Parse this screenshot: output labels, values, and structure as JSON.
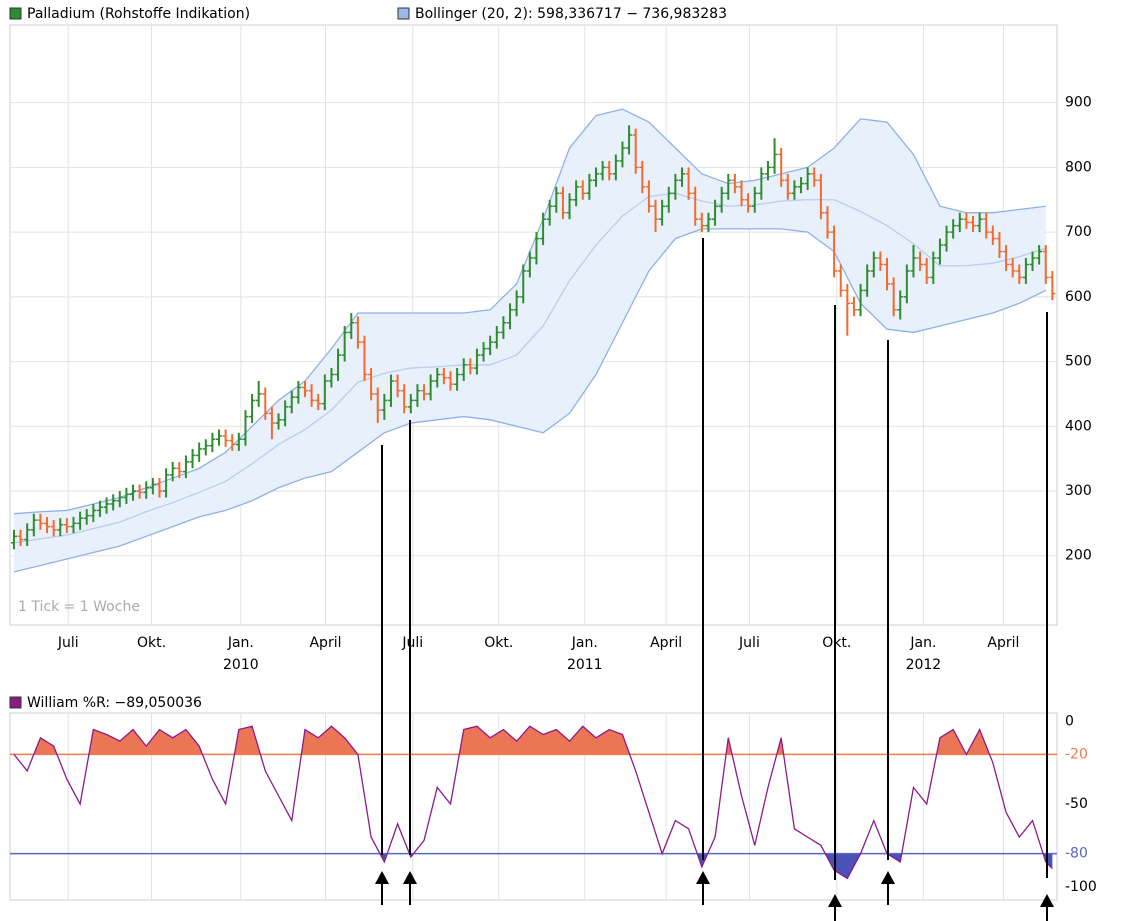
{
  "chart_data": [
    {
      "type": "ohlc",
      "legend": [
        {
          "name": "Palladium (Rohstoffe Indikation)",
          "color": "#2e8b2e"
        },
        {
          "name": "Bollinger (20, 2): 598,336717 − 736,983283",
          "color": "#9ab8e8"
        }
      ],
      "annotation": "1 Tick = 1 Woche",
      "up_color": "#2e8b2e",
      "down_color": "#f26a2e",
      "x": [
        0,
        1,
        2,
        3,
        4,
        5,
        6,
        7,
        8,
        9,
        10,
        11,
        12,
        13,
        14,
        15,
        16,
        17,
        18,
        19,
        20,
        21,
        22,
        23,
        24,
        25,
        26,
        27,
        28,
        29,
        30,
        31,
        32,
        33,
        34,
        35,
        36,
        37,
        38,
        39,
        40,
        41,
        42,
        43,
        44,
        45,
        46,
        47,
        48,
        49,
        50,
        51,
        52,
        53,
        54,
        55,
        56,
        57,
        58,
        59,
        60,
        61,
        62,
        63,
        64,
        65,
        66,
        67,
        68,
        69,
        70,
        71,
        72,
        73,
        74,
        75,
        76,
        77,
        78,
        79,
        80,
        81,
        82,
        83,
        84,
        85,
        86,
        87,
        88,
        89,
        90,
        91,
        92,
        93,
        94,
        95,
        96,
        97,
        98,
        99,
        100,
        101,
        102,
        103,
        104,
        105,
        106,
        107,
        108,
        109,
        110,
        111,
        112,
        113,
        114,
        115,
        116,
        117,
        118,
        119,
        120,
        121,
        122,
        123,
        124,
        125,
        126,
        127,
        128,
        129,
        130,
        131,
        132,
        133,
        134,
        135,
        136,
        137,
        138,
        139,
        140,
        141,
        142,
        143,
        144,
        145,
        146,
        147,
        148,
        149,
        150,
        151,
        152,
        153,
        154,
        155,
        156,
        157
      ],
      "open": [
        220,
        230,
        225,
        240,
        255,
        250,
        245,
        240,
        248,
        245,
        250,
        258,
        262,
        270,
        275,
        280,
        285,
        290,
        295,
        300,
        298,
        305,
        310,
        300,
        325,
        335,
        330,
        345,
        355,
        365,
        370,
        380,
        385,
        378,
        372,
        380,
        415,
        440,
        450,
        420,
        405,
        410,
        430,
        445,
        460,
        455,
        440,
        435,
        470,
        480,
        510,
        545,
        560,
        530,
        480,
        450,
        425,
        440,
        470,
        455,
        430,
        440,
        455,
        450,
        470,
        480,
        475,
        465,
        480,
        495,
        490,
        510,
        520,
        530,
        545,
        560,
        580,
        600,
        640,
        660,
        690,
        720,
        740,
        760,
        730,
        750,
        770,
        760,
        780,
        790,
        800,
        790,
        810,
        830,
        850,
        800,
        770,
        740,
        720,
        740,
        760,
        780,
        790,
        760,
        720,
        710,
        720,
        740,
        760,
        780,
        770,
        750,
        740,
        760,
        790,
        800,
        820,
        780,
        760,
        770,
        775,
        790,
        780,
        730,
        700,
        640,
        610,
        590,
        580,
        610,
        640,
        660,
        650,
        620,
        580,
        600,
        640,
        660,
        650,
        630,
        660,
        680,
        700,
        710,
        720,
        715,
        710,
        720,
        700,
        690,
        670,
        650,
        640,
        630,
        650,
        660,
        670,
        630
      ],
      "high": [
        240,
        240,
        250,
        265,
        265,
        260,
        255,
        258,
        258,
        260,
        268,
        272,
        280,
        285,
        290,
        295,
        300,
        305,
        310,
        310,
        315,
        320,
        320,
        335,
        345,
        345,
        355,
        365,
        375,
        380,
        390,
        395,
        395,
        388,
        390,
        425,
        450,
        470,
        460,
        430,
        420,
        440,
        455,
        470,
        470,
        465,
        450,
        480,
        490,
        520,
        555,
        575,
        570,
        540,
        490,
        460,
        450,
        480,
        480,
        465,
        450,
        465,
        465,
        480,
        490,
        490,
        485,
        490,
        505,
        505,
        520,
        530,
        540,
        555,
        570,
        590,
        610,
        650,
        670,
        700,
        730,
        750,
        770,
        770,
        760,
        780,
        780,
        790,
        800,
        810,
        810,
        820,
        840,
        865,
        860,
        810,
        780,
        750,
        750,
        770,
        790,
        800,
        800,
        770,
        730,
        730,
        750,
        770,
        790,
        790,
        780,
        760,
        770,
        800,
        810,
        845,
        830,
        790,
        780,
        785,
        800,
        800,
        790,
        740,
        710,
        650,
        620,
        600,
        620,
        650,
        670,
        670,
        660,
        630,
        610,
        650,
        680,
        670,
        660,
        670,
        690,
        710,
        720,
        730,
        730,
        725,
        730,
        730,
        710,
        700,
        680,
        660,
        650,
        660,
        670,
        680,
        680,
        640
      ],
      "low": [
        210,
        215,
        215,
        230,
        240,
        235,
        230,
        230,
        235,
        235,
        240,
        248,
        252,
        260,
        265,
        270,
        275,
        280,
        285,
        288,
        288,
        295,
        290,
        290,
        315,
        320,
        320,
        335,
        345,
        355,
        360,
        370,
        368,
        362,
        362,
        370,
        405,
        430,
        410,
        380,
        395,
        400,
        420,
        435,
        445,
        430,
        425,
        425,
        460,
        470,
        500,
        535,
        520,
        470,
        440,
        405,
        410,
        430,
        445,
        420,
        420,
        430,
        440,
        440,
        460,
        465,
        455,
        455,
        470,
        480,
        480,
        500,
        510,
        520,
        535,
        550,
        570,
        590,
        630,
        650,
        680,
        710,
        730,
        720,
        720,
        740,
        750,
        750,
        770,
        780,
        780,
        780,
        800,
        820,
        790,
        760,
        730,
        700,
        710,
        730,
        750,
        770,
        750,
        710,
        700,
        700,
        710,
        730,
        750,
        760,
        740,
        730,
        730,
        750,
        780,
        790,
        770,
        750,
        750,
        760,
        765,
        770,
        720,
        690,
        630,
        600,
        540,
        570,
        570,
        600,
        630,
        640,
        610,
        570,
        565,
        590,
        630,
        640,
        620,
        620,
        650,
        670,
        690,
        700,
        705,
        700,
        700,
        690,
        680,
        660,
        640,
        630,
        620,
        620,
        640,
        650,
        620,
        595
      ],
      "close": [
        230,
        225,
        240,
        255,
        250,
        245,
        240,
        248,
        245,
        250,
        258,
        262,
        270,
        275,
        280,
        285,
        290,
        295,
        300,
        298,
        305,
        310,
        300,
        325,
        335,
        330,
        345,
        355,
        365,
        370,
        380,
        385,
        378,
        372,
        380,
        415,
        440,
        450,
        420,
        405,
        410,
        430,
        445,
        460,
        455,
        440,
        435,
        470,
        480,
        510,
        545,
        560,
        530,
        480,
        450,
        425,
        440,
        470,
        455,
        430,
        440,
        455,
        450,
        470,
        480,
        475,
        465,
        480,
        495,
        490,
        510,
        520,
        530,
        545,
        560,
        580,
        600,
        640,
        660,
        690,
        720,
        740,
        760,
        730,
        750,
        770,
        760,
        780,
        790,
        800,
        790,
        810,
        830,
        850,
        800,
        770,
        740,
        720,
        740,
        760,
        780,
        790,
        760,
        720,
        710,
        720,
        740,
        760,
        780,
        770,
        750,
        740,
        760,
        790,
        800,
        820,
        780,
        760,
        770,
        775,
        790,
        780,
        730,
        700,
        640,
        610,
        590,
        580,
        610,
        640,
        660,
        650,
        620,
        580,
        600,
        640,
        660,
        650,
        630,
        660,
        680,
        700,
        710,
        720,
        715,
        710,
        720,
        700,
        690,
        670,
        650,
        640,
        630,
        650,
        660,
        670,
        630,
        605
      ],
      "bands": {
        "color": "#8fb0e6",
        "fill": "#e8f0fb",
        "middle_color": "#b9cdef",
        "x": [
          0,
          4,
          8,
          12,
          16,
          20,
          24,
          28,
          32,
          36,
          40,
          44,
          48,
          52,
          56,
          60,
          64,
          68,
          72,
          76,
          80,
          84,
          88,
          92,
          96,
          100,
          104,
          108,
          112,
          116,
          120,
          124,
          128,
          132,
          136,
          140,
          144,
          148,
          152,
          156
        ],
        "upper": [
          265,
          268,
          270,
          280,
          290,
          305,
          320,
          335,
          360,
          400,
          440,
          470,
          520,
          575,
          575,
          575,
          575,
          575,
          580,
          620,
          720,
          830,
          880,
          890,
          870,
          830,
          790,
          775,
          780,
          790,
          800,
          830,
          875,
          870,
          820,
          740,
          730,
          730,
          735,
          740
        ],
        "middle": [
          220,
          226,
          232,
          242,
          252,
          268,
          282,
          298,
          315,
          342,
          372,
          395,
          425,
          468,
          482,
          490,
          492,
          495,
          495,
          510,
          555,
          625,
          680,
          725,
          755,
          760,
          748,
          740,
          742,
          748,
          750,
          750,
          732,
          710,
          682,
          648,
          648,
          652,
          662,
          675
        ],
        "lower": [
          175,
          185,
          195,
          205,
          215,
          230,
          245,
          260,
          270,
          285,
          305,
          320,
          330,
          360,
          390,
          405,
          410,
          415,
          410,
          400,
          390,
          420,
          480,
          560,
          640,
          690,
          705,
          705,
          705,
          705,
          700,
          670,
          590,
          550,
          545,
          555,
          565,
          575,
          590,
          610
        ]
      },
      "xlim": [
        -0.6,
        157.7
      ],
      "xticks": [
        {
          "value": 8.2,
          "label": "Juli"
        },
        {
          "value": 20.8,
          "label": "Okt."
        },
        {
          "value": 34.3,
          "label": "Jan.",
          "year": "2010"
        },
        {
          "value": 47.1,
          "label": "April"
        },
        {
          "value": 60.3,
          "label": "Juli"
        },
        {
          "value": 73.3,
          "label": "Okt."
        },
        {
          "value": 86.3,
          "label": "Jan.",
          "year": "2011"
        },
        {
          "value": 98.6,
          "label": "April"
        },
        {
          "value": 111.2,
          "label": "Juli"
        },
        {
          "value": 124.4,
          "label": "Okt."
        },
        {
          "value": 137.5,
          "label": "Jan.",
          "year": "2012"
        },
        {
          "value": 149.6,
          "label": "April"
        }
      ],
      "ylim": [
        93,
        1020
      ],
      "yticks": [
        200,
        300,
        400,
        500,
        600,
        700,
        800,
        900
      ],
      "grid": true
    },
    {
      "type": "line",
      "series": [
        {
          "name": "William %R: −89,050036",
          "color": "#8b1a8b",
          "values": [
            -20,
            -30,
            -10,
            -15,
            -35,
            -50,
            -5,
            -8,
            -12,
            -5,
            -15,
            -5,
            -10,
            -5,
            -15,
            -35,
            -50,
            -5,
            -3,
            -30,
            -45,
            -60,
            -5,
            -10,
            -3,
            -10,
            -20,
            -70,
            -85,
            -62,
            -82,
            -72,
            -40,
            -50,
            -5,
            -3,
            -10,
            -5,
            -12,
            -3,
            -8,
            -5,
            -12,
            -3,
            -10,
            -5,
            -8,
            -30,
            -55,
            -80,
            -60,
            -65,
            -88,
            -70,
            -10,
            -45,
            -75,
            -40,
            -10,
            -65,
            -70,
            -75,
            -90,
            -95,
            -80,
            -60,
            -80,
            -85,
            -40,
            -50,
            -10,
            -5,
            -20,
            -5,
            -25,
            -55,
            -70,
            -60,
            -85,
            -89
          ]
        }
      ],
      "x": [
        0,
        2,
        4,
        6,
        8,
        10,
        12,
        14,
        16,
        18,
        20,
        22,
        24,
        26,
        28,
        30,
        32,
        34,
        36,
        38,
        40,
        42,
        44,
        46,
        48,
        50,
        52,
        54,
        56,
        58,
        60,
        62,
        64,
        66,
        68,
        70,
        72,
        74,
        76,
        78,
        80,
        82,
        84,
        86,
        88,
        90,
        92,
        94,
        96,
        98,
        100,
        102,
        104,
        106,
        108,
        110,
        112,
        114,
        116,
        118,
        120,
        122,
        124,
        126,
        128,
        130,
        132,
        134,
        136,
        138,
        140,
        142,
        144,
        146,
        148,
        150,
        152,
        154,
        156,
        157
      ],
      "xlim": [
        -0.6,
        157.7
      ],
      "ylim": [
        -108,
        5
      ],
      "yticks": [
        0,
        -20,
        -50,
        -80,
        -100
      ],
      "levels": [
        {
          "value": -20,
          "color": "#f07a50",
          "fill": "#ec7556"
        },
        {
          "value": -80,
          "color": "#5866c4",
          "fill": "#4a52b8"
        }
      ]
    }
  ]
}
